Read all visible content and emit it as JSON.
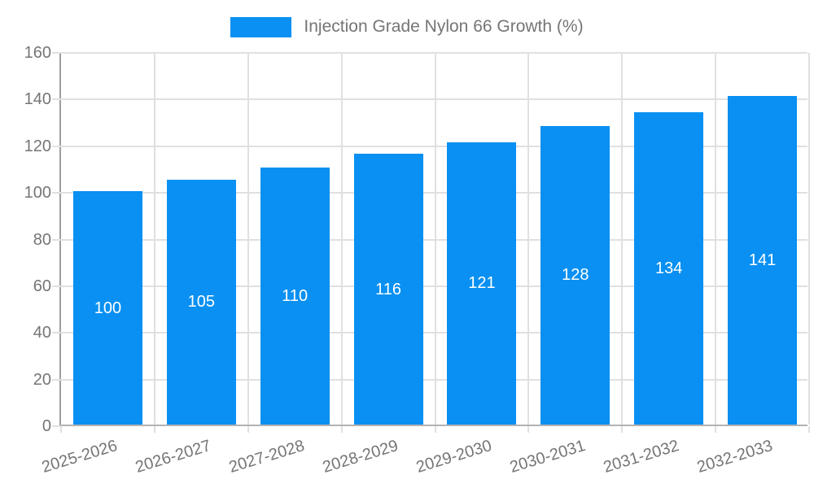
{
  "chart_data": {
    "type": "bar",
    "title": "",
    "legend": "Injection Grade Nylon 66 Growth (%)",
    "legend_position": "top-center",
    "categories": [
      "2025-2026",
      "2026-2027",
      "2027-2028",
      "2028-2029",
      "2029-2030",
      "2030-2031",
      "2031-2032",
      "2032-2033"
    ],
    "values": [
      100,
      105,
      110,
      116,
      121,
      128,
      134,
      141
    ],
    "xlabel": "",
    "ylabel": "",
    "ylim": [
      0,
      160
    ],
    "yticks": [
      0,
      20,
      40,
      60,
      80,
      100,
      120,
      140,
      160
    ],
    "grid": "both",
    "value_labels": "centered-inside-bars",
    "x_tick_rotation_deg": -17
  },
  "colors": {
    "bar": "#0990f2",
    "gridline": "#e0e0e0",
    "axis_left": "#9e9e9e",
    "axis_bottom": "#b3b3b3",
    "tick_text": "#757575",
    "value_text": "#ffffff",
    "background": "#ffffff"
  }
}
